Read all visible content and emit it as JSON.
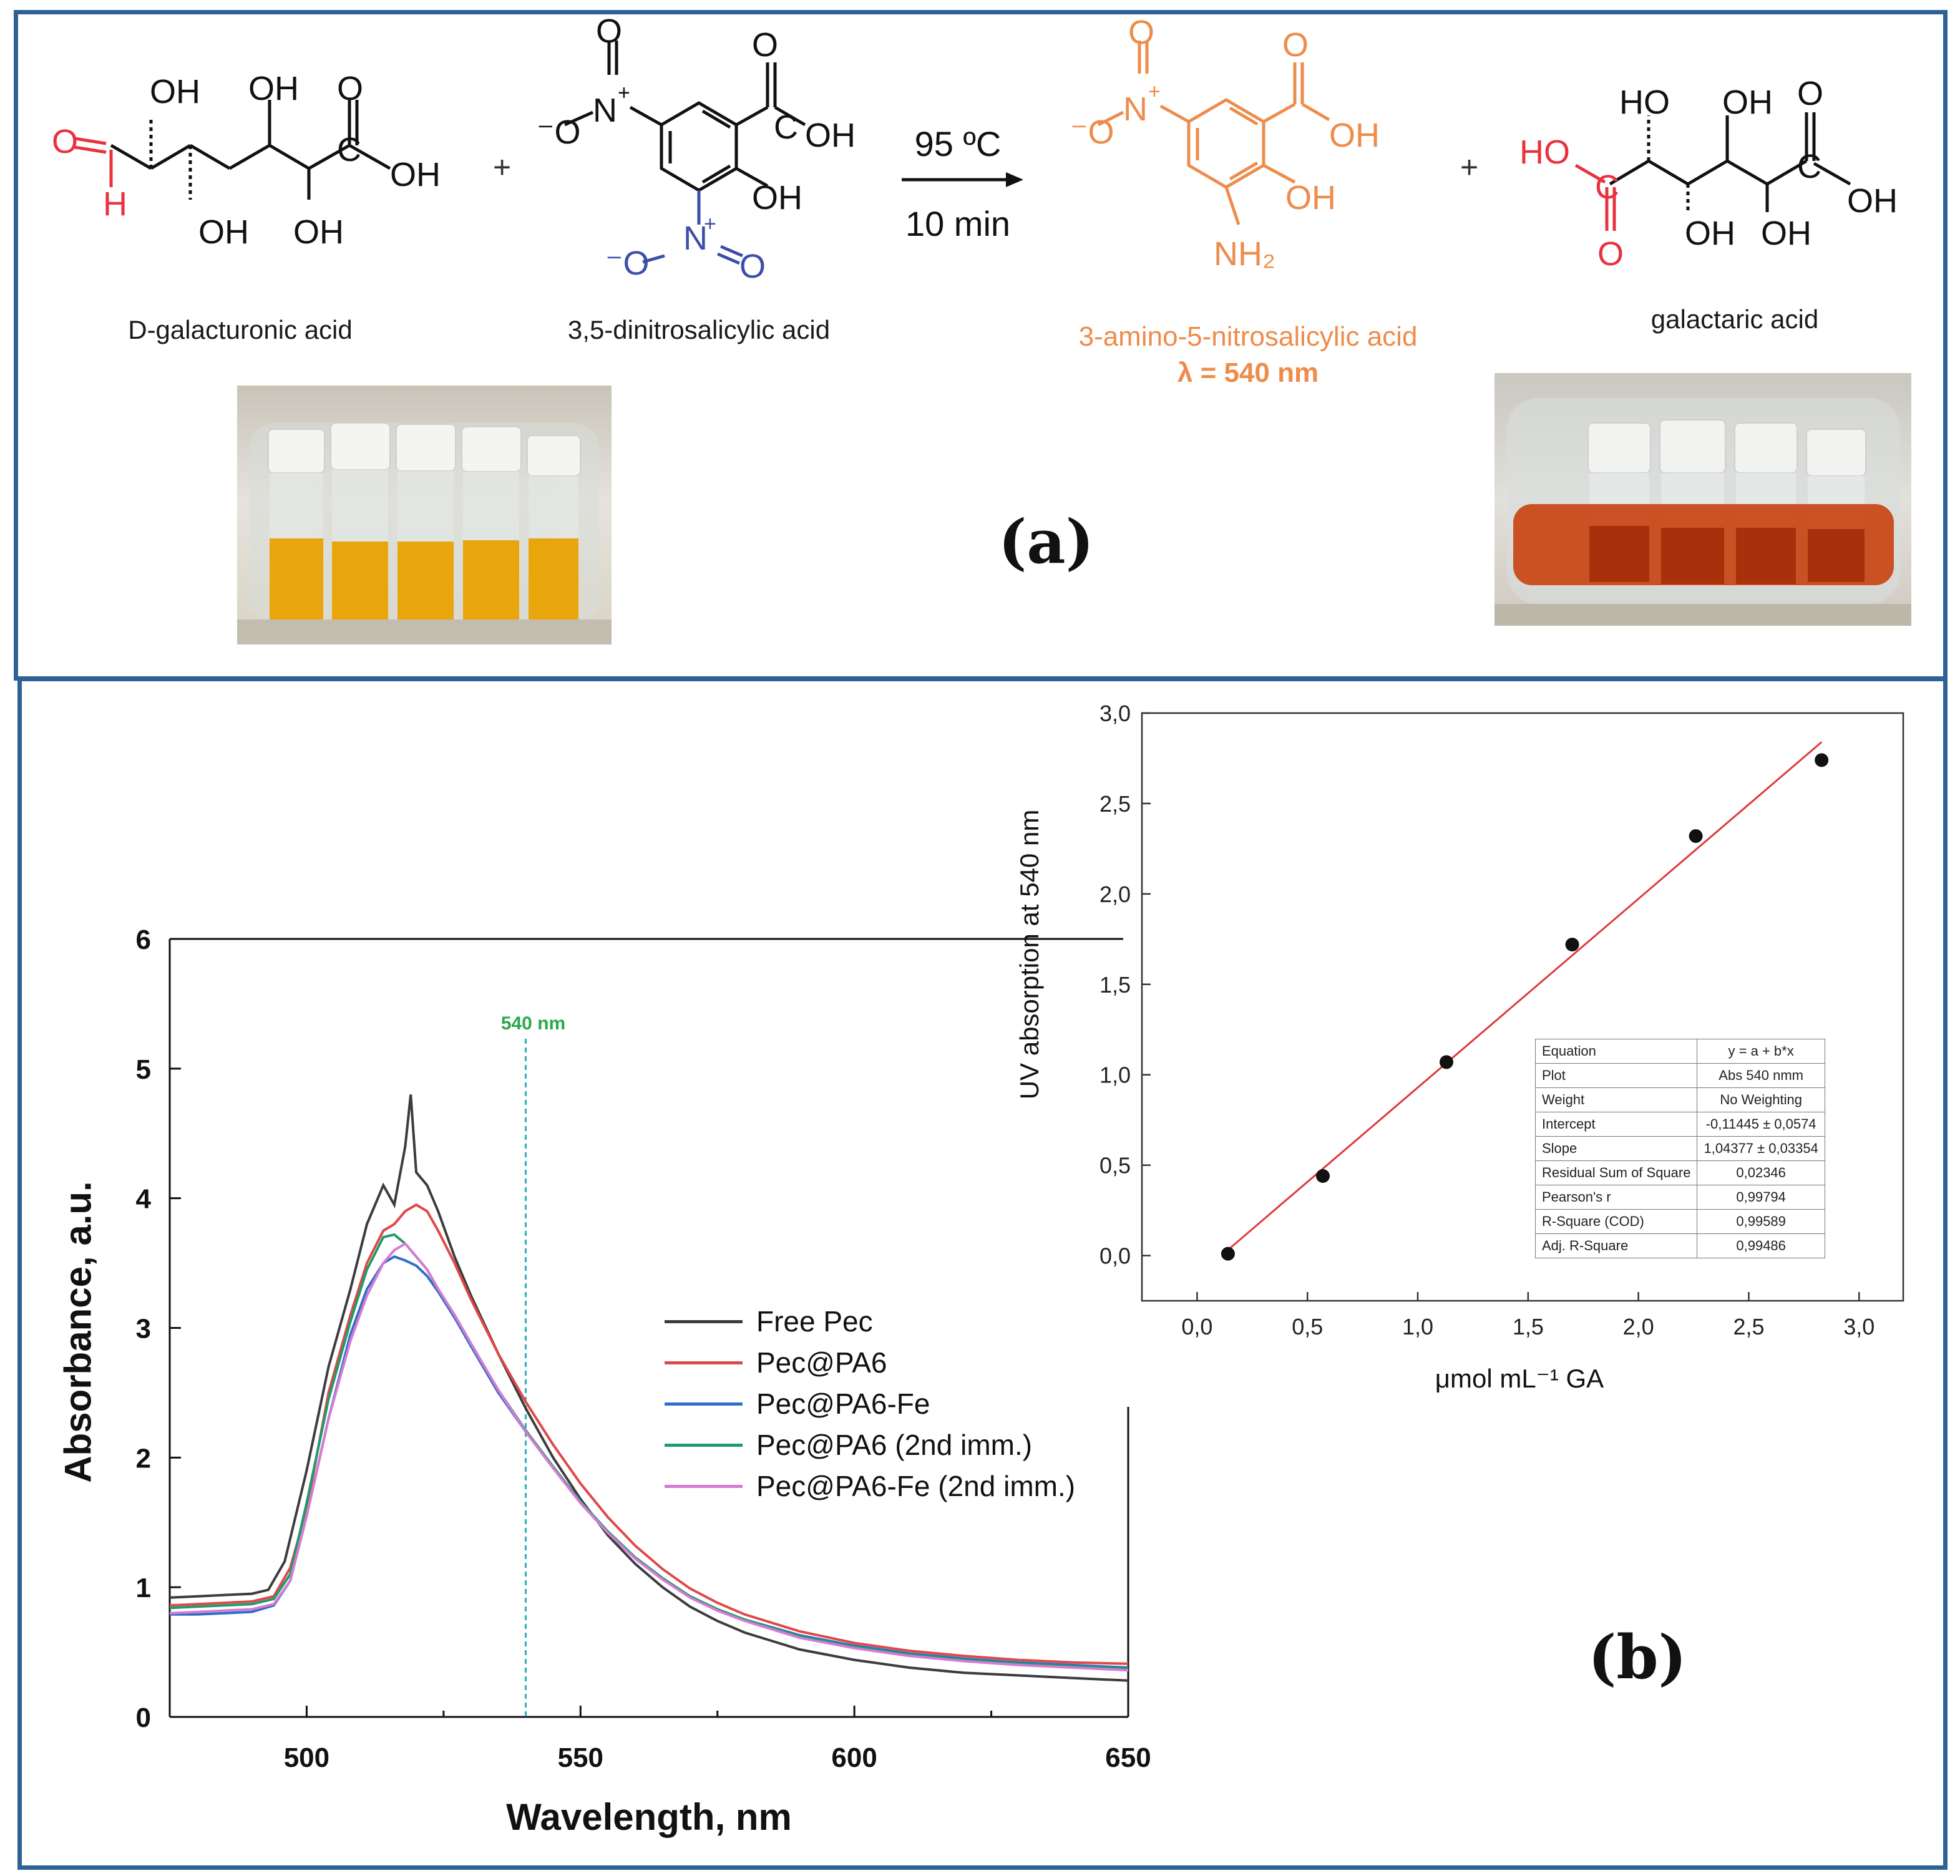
{
  "panel_a": {
    "label": "(a)",
    "reaction_conditions": {
      "temperature": "95 ºC",
      "time": "10 min"
    },
    "compounds": [
      {
        "name": "D-galacturonic acid"
      },
      {
        "name": "3,5-dinitrosalicylic acid"
      },
      {
        "name": "3-amino-5-nitrosalicylic acid",
        "detail": "λ = 540 nm"
      },
      {
        "name": "galactaric acid"
      }
    ],
    "plus": "+",
    "photos": [
      {
        "description_icon": "vials-yellow-photo",
        "liquid_color": "#e9a50c"
      },
      {
        "description_icon": "vials-red-photo",
        "liquid_color": "#c8410f"
      }
    ],
    "structure_labels": {
      "oh": "OH",
      "ho": "HO",
      "o": "O",
      "h": "H",
      "c": "C",
      "n": "N",
      "plus": "+",
      "minus_o": "⁻O",
      "nh2": "NH₂"
    },
    "colors": {
      "aldehyde": "#e8323c",
      "nitro_blue": "#3b4fa8",
      "product": "#ee8c4b",
      "acid_red": "#e8323c"
    }
  },
  "panel_b": {
    "label": "(b)"
  },
  "chart_data": [
    {
      "type": "line",
      "xlabel": "Wavelength, nm",
      "ylabel": "Absorbance, a.u.",
      "xlim": [
        475,
        650
      ],
      "ylim": [
        0,
        6
      ],
      "xticks": [
        500,
        550,
        600,
        650
      ],
      "yticks": [
        0,
        1,
        2,
        3,
        4,
        5,
        6
      ],
      "annotation": {
        "text": "540 nm",
        "x": 540,
        "color": "#2aa84a"
      },
      "legend_position": "center-right",
      "series": [
        {
          "name": "Free Pec",
          "color": "#3c3c3c",
          "points": [
            [
              475,
              0.92
            ],
            [
              480,
              0.93
            ],
            [
              485,
              0.94
            ],
            [
              490,
              0.95
            ],
            [
              493,
              0.98
            ],
            [
              496,
              1.2
            ],
            [
              500,
              1.9
            ],
            [
              504,
              2.7
            ],
            [
              508,
              3.3
            ],
            [
              511,
              3.8
            ],
            [
              514,
              4.1
            ],
            [
              516,
              3.95
            ],
            [
              518,
              4.4
            ],
            [
              519,
              4.8
            ],
            [
              520,
              4.2
            ],
            [
              522,
              4.1
            ],
            [
              524,
              3.9
            ],
            [
              527,
              3.55
            ],
            [
              530,
              3.25
            ],
            [
              535,
              2.8
            ],
            [
              540,
              2.38
            ],
            [
              545,
              2.0
            ],
            [
              550,
              1.68
            ],
            [
              555,
              1.4
            ],
            [
              560,
              1.18
            ],
            [
              565,
              1.0
            ],
            [
              570,
              0.85
            ],
            [
              575,
              0.74
            ],
            [
              580,
              0.65
            ],
            [
              590,
              0.52
            ],
            [
              600,
              0.44
            ],
            [
              610,
              0.38
            ],
            [
              620,
              0.34
            ],
            [
              630,
              0.32
            ],
            [
              640,
              0.3
            ],
            [
              650,
              0.28
            ]
          ]
        },
        {
          "name": "Pec@PA6",
          "color": "#e04848",
          "points": [
            [
              475,
              0.86
            ],
            [
              480,
              0.87
            ],
            [
              485,
              0.88
            ],
            [
              490,
              0.89
            ],
            [
              494,
              0.93
            ],
            [
              497,
              1.15
            ],
            [
              500,
              1.6
            ],
            [
              504,
              2.5
            ],
            [
              508,
              3.1
            ],
            [
              511,
              3.5
            ],
            [
              514,
              3.75
            ],
            [
              516,
              3.8
            ],
            [
              518,
              3.9
            ],
            [
              520,
              3.95
            ],
            [
              522,
              3.9
            ],
            [
              524,
              3.75
            ],
            [
              527,
              3.5
            ],
            [
              530,
              3.22
            ],
            [
              535,
              2.8
            ],
            [
              540,
              2.43
            ],
            [
              545,
              2.1
            ],
            [
              550,
              1.8
            ],
            [
              555,
              1.54
            ],
            [
              560,
              1.32
            ],
            [
              565,
              1.14
            ],
            [
              570,
              0.99
            ],
            [
              575,
              0.88
            ],
            [
              580,
              0.79
            ],
            [
              590,
              0.66
            ],
            [
              600,
              0.57
            ],
            [
              610,
              0.51
            ],
            [
              620,
              0.47
            ],
            [
              630,
              0.44
            ],
            [
              640,
              0.42
            ],
            [
              650,
              0.41
            ]
          ]
        },
        {
          "name": "Pec@PA6-Fe",
          "color": "#2e6fc7",
          "points": [
            [
              475,
              0.79
            ],
            [
              480,
              0.79
            ],
            [
              485,
              0.8
            ],
            [
              490,
              0.81
            ],
            [
              494,
              0.86
            ],
            [
              497,
              1.05
            ],
            [
              500,
              1.55
            ],
            [
              504,
              2.3
            ],
            [
              508,
              2.95
            ],
            [
              511,
              3.3
            ],
            [
              514,
              3.5
            ],
            [
              516,
              3.55
            ],
            [
              518,
              3.52
            ],
            [
              520,
              3.48
            ],
            [
              522,
              3.4
            ],
            [
              524,
              3.28
            ],
            [
              527,
              3.08
            ],
            [
              530,
              2.86
            ],
            [
              535,
              2.5
            ],
            [
              540,
              2.2
            ],
            [
              545,
              1.92
            ],
            [
              550,
              1.65
            ],
            [
              555,
              1.42
            ],
            [
              560,
              1.22
            ],
            [
              565,
              1.06
            ],
            [
              570,
              0.93
            ],
            [
              575,
              0.83
            ],
            [
              580,
              0.75
            ],
            [
              590,
              0.63
            ],
            [
              600,
              0.55
            ],
            [
              610,
              0.49
            ],
            [
              620,
              0.45
            ],
            [
              630,
              0.42
            ],
            [
              640,
              0.4
            ],
            [
              650,
              0.38
            ]
          ]
        },
        {
          "name": "Pec@PA6 (2nd imm.)",
          "color": "#1f9c6a",
          "points": [
            [
              475,
              0.84
            ],
            [
              480,
              0.85
            ],
            [
              485,
              0.86
            ],
            [
              490,
              0.87
            ],
            [
              494,
              0.91
            ],
            [
              497,
              1.1
            ],
            [
              500,
              1.65
            ],
            [
              504,
              2.45
            ],
            [
              508,
              3.05
            ],
            [
              511,
              3.45
            ],
            [
              514,
              3.7
            ],
            [
              516,
              3.72
            ],
            [
              518,
              3.65
            ],
            [
              520,
              3.55
            ],
            [
              522,
              3.45
            ],
            [
              524,
              3.3
            ],
            [
              527,
              3.1
            ],
            [
              530,
              2.88
            ],
            [
              535,
              2.52
            ],
            [
              540,
              2.21
            ],
            [
              545,
              1.93
            ],
            [
              550,
              1.66
            ],
            [
              555,
              1.43
            ],
            [
              560,
              1.23
            ],
            [
              565,
              1.07
            ],
            [
              570,
              0.93
            ],
            [
              575,
              0.83
            ],
            [
              580,
              0.75
            ],
            [
              590,
              0.62
            ],
            [
              600,
              0.54
            ],
            [
              610,
              0.48
            ],
            [
              620,
              0.44
            ],
            [
              630,
              0.41
            ],
            [
              640,
              0.39
            ],
            [
              650,
              0.37
            ]
          ]
        },
        {
          "name": "Pec@PA6-Fe (2nd imm.)",
          "color": "#d77ad4",
          "points": [
            [
              475,
              0.8
            ],
            [
              480,
              0.81
            ],
            [
              485,
              0.82
            ],
            [
              490,
              0.83
            ],
            [
              494,
              0.87
            ],
            [
              497,
              1.05
            ],
            [
              500,
              1.55
            ],
            [
              504,
              2.3
            ],
            [
              508,
              2.9
            ],
            [
              511,
              3.25
            ],
            [
              514,
              3.5
            ],
            [
              516,
              3.6
            ],
            [
              518,
              3.65
            ],
            [
              520,
              3.55
            ],
            [
              522,
              3.45
            ],
            [
              524,
              3.3
            ],
            [
              527,
              3.1
            ],
            [
              530,
              2.88
            ],
            [
              535,
              2.52
            ],
            [
              540,
              2.2
            ],
            [
              545,
              1.92
            ],
            [
              550,
              1.65
            ],
            [
              555,
              1.42
            ],
            [
              560,
              1.22
            ],
            [
              565,
              1.06
            ],
            [
              570,
              0.92
            ],
            [
              575,
              0.82
            ],
            [
              580,
              0.74
            ],
            [
              590,
              0.61
            ],
            [
              600,
              0.53
            ],
            [
              610,
              0.47
            ],
            [
              620,
              0.43
            ],
            [
              630,
              0.4
            ],
            [
              640,
              0.38
            ],
            [
              650,
              0.36
            ]
          ]
        }
      ]
    },
    {
      "type": "scatter",
      "xlabel": "μmol mL⁻¹ GA",
      "ylabel": "UV absorption at 540 nm",
      "xlim": [
        -0.25,
        3.2
      ],
      "ylim": [
        -0.25,
        3.0
      ],
      "xticks": [
        "0,0",
        "0,5",
        "1,0",
        "1,5",
        "2,0",
        "2,5",
        "3,0"
      ],
      "xtick_values": [
        0,
        0.5,
        1,
        1.5,
        2,
        2.5,
        3
      ],
      "yticks": [
        "0,0",
        "0,5",
        "1,0",
        "1,5",
        "2,0",
        "2,5",
        "3,0"
      ],
      "ytick_values": [
        0,
        0.5,
        1,
        1.5,
        2,
        2.5,
        3
      ],
      "points": [
        [
          0.14,
          0.01
        ],
        [
          0.57,
          0.44
        ],
        [
          1.13,
          1.07
        ],
        [
          1.7,
          1.72
        ],
        [
          2.26,
          2.32
        ],
        [
          2.83,
          2.74
        ]
      ],
      "fit_line": {
        "intercept": -0.11445,
        "slope": 1.04377,
        "x_range": [
          0.14,
          2.83
        ],
        "color": "#e03a3a"
      },
      "stats_table": [
        [
          "Equation",
          "y = a + b*x"
        ],
        [
          "Plot",
          "Abs 540 nmm"
        ],
        [
          "Weight",
          "No Weighting"
        ],
        [
          "Intercept",
          "-0,11445 ± 0,0574"
        ],
        [
          "Slope",
          "1,04377 ± 0,03354"
        ],
        [
          "Residual Sum of Square",
          "0,02346"
        ],
        [
          "Pearson's r",
          "0,99794"
        ],
        [
          "R-Square (COD)",
          "0,99589"
        ],
        [
          "Adj. R-Square",
          "0,99486"
        ]
      ]
    }
  ]
}
